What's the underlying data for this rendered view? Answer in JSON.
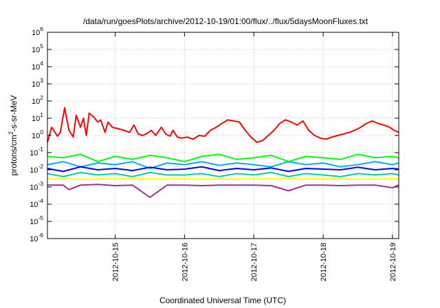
{
  "chart_data": {
    "type": "line",
    "title": "/data/run/goesPlots/archive/2012-10-19/01:00/flux/../flux/5daysMoonFluxes.txt",
    "xlabel": "Coordinated Universal Time (UTC)",
    "ylabel_base": "protons/cm",
    "ylabel_sup": "2",
    "ylabel_tail": "-s-sr-MeV",
    "y_scale": "log",
    "ylim": [
      1e-06,
      1000000.0
    ],
    "xlim": [
      "2012-10-14T00:33",
      "2012-10-19T02:10"
    ],
    "grid": true,
    "y_ticks": [
      {
        "value": 1e-06,
        "base": "10",
        "exp": "-6"
      },
      {
        "value": 1e-05,
        "base": "10",
        "exp": "-5"
      },
      {
        "value": 0.0001,
        "base": "10",
        "exp": "-4"
      },
      {
        "value": 0.001,
        "base": "10",
        "exp": "-3"
      },
      {
        "value": 0.01,
        "base": "10",
        "exp": "-2"
      },
      {
        "value": 0.1,
        "base": "10",
        "exp": "-1"
      },
      {
        "value": 1,
        "base": "10",
        "exp": "0"
      },
      {
        "value": 10,
        "base": "10",
        "exp": "1"
      },
      {
        "value": 100,
        "base": "10",
        "exp": "2"
      },
      {
        "value": 1000,
        "base": "10",
        "exp": "3"
      },
      {
        "value": 10000,
        "base": "10",
        "exp": "4"
      },
      {
        "value": 100000,
        "base": "10",
        "exp": "5"
      },
      {
        "value": 1000000,
        "base": "10",
        "exp": "6"
      }
    ],
    "x_ticks": [
      {
        "value": "2012-10-15T00:00",
        "label": "2012-10-15"
      },
      {
        "value": "2012-10-16T00:00",
        "label": "2012-10-16"
      },
      {
        "value": "2012-10-17T00:00",
        "label": "2012-10-17"
      },
      {
        "value": "2012-10-18T00:00",
        "label": "2012-10-18"
      },
      {
        "value": "2012-10-19T00:00",
        "label": "2012-10-19"
      }
    ],
    "series": [
      {
        "color": "#ff0000",
        "x": [
          "2012-10-14T00:33",
          "2012-10-14T02:00",
          "2012-10-14T04:00",
          "2012-10-14T05:00",
          "2012-10-14T06:30",
          "2012-10-14T08:00",
          "2012-10-14T09:30",
          "2012-10-14T10:30",
          "2012-10-14T12:00",
          "2012-10-14T13:00",
          "2012-10-14T14:00",
          "2012-10-14T15:00",
          "2012-10-14T16:30",
          "2012-10-14T18:00",
          "2012-10-14T19:00",
          "2012-10-14T20:30",
          "2012-10-14T21:30",
          "2012-10-14T23:00",
          "2012-10-15T01:00",
          "2012-10-15T03:00",
          "2012-10-15T05:00",
          "2012-10-15T06:30",
          "2012-10-15T08:00",
          "2012-10-15T09:30",
          "2012-10-15T11:00",
          "2012-10-15T12:30",
          "2012-10-15T14:00",
          "2012-10-15T16:00",
          "2012-10-15T17:30",
          "2012-10-15T19:00",
          "2012-10-15T20:00",
          "2012-10-15T21:30",
          "2012-10-15T23:00",
          "2012-10-16T01:00",
          "2012-10-16T03:00",
          "2012-10-16T05:00",
          "2012-10-16T07:00",
          "2012-10-16T09:00",
          "2012-10-16T11:00",
          "2012-10-16T13:00",
          "2012-10-16T15:00",
          "2012-10-16T17:00",
          "2012-10-16T19:00",
          "2012-10-16T21:00",
          "2012-10-16T23:00",
          "2012-10-17T01:00",
          "2012-10-17T03:00",
          "2012-10-17T05:00",
          "2012-10-17T07:00",
          "2012-10-17T09:00",
          "2012-10-17T11:00",
          "2012-10-17T13:00",
          "2012-10-17T15:00",
          "2012-10-17T17:00",
          "2012-10-17T19:00",
          "2012-10-17T21:00",
          "2012-10-17T23:00",
          "2012-10-18T01:00",
          "2012-10-18T03:00",
          "2012-10-18T05:00",
          "2012-10-18T07:00",
          "2012-10-18T09:00",
          "2012-10-18T11:00",
          "2012-10-18T13:00",
          "2012-10-18T15:00",
          "2012-10-18T17:00",
          "2012-10-18T19:00",
          "2012-10-18T21:00",
          "2012-10-18T23:00",
          "2012-10-19T00:30",
          "2012-10-19T02:10"
        ],
        "values": [
          0.4,
          3,
          0.9,
          1.5,
          40,
          2,
          0.8,
          15,
          3,
          10,
          1,
          20,
          12,
          6,
          8,
          1.5,
          6,
          3,
          2.5,
          2,
          1.5,
          4,
          1.2,
          1,
          1.3,
          2,
          1,
          3,
          1.2,
          0.9,
          2,
          0.8,
          0.7,
          0.8,
          0.6,
          1,
          0.9,
          2,
          3,
          5,
          8,
          7,
          6,
          2,
          0.8,
          0.4,
          0.5,
          1,
          2,
          5,
          8,
          6,
          4,
          7,
          2,
          1,
          0.7,
          0.6,
          0.8,
          1,
          1.2,
          1.5,
          2,
          3,
          5,
          7,
          5,
          4,
          3,
          2,
          1.5
        ]
      },
      {
        "color": "#00ff00",
        "x": [
          "2012-10-14T00:33",
          "2012-10-14T06:00",
          "2012-10-14T12:00",
          "2012-10-14T18:00",
          "2012-10-15T00:00",
          "2012-10-15T06:00",
          "2012-10-15T12:00",
          "2012-10-15T18:00",
          "2012-10-16T00:00",
          "2012-10-16T06:00",
          "2012-10-16T12:00",
          "2012-10-16T18:00",
          "2012-10-17T00:00",
          "2012-10-17T06:00",
          "2012-10-17T12:00",
          "2012-10-17T18:00",
          "2012-10-18T00:00",
          "2012-10-18T06:00",
          "2012-10-18T12:00",
          "2012-10-18T18:00",
          "2012-10-19T00:00",
          "2012-10-19T02:10"
        ],
        "values": [
          0.06,
          0.05,
          0.08,
          0.03,
          0.06,
          0.04,
          0.07,
          0.05,
          0.03,
          0.06,
          0.08,
          0.04,
          0.05,
          0.07,
          0.03,
          0.06,
          0.05,
          0.04,
          0.08,
          0.05,
          0.06,
          0.05
        ]
      },
      {
        "color": "#00aaff",
        "x": [
          "2012-10-14T00:33",
          "2012-10-14T06:00",
          "2012-10-14T12:00",
          "2012-10-14T18:00",
          "2012-10-15T00:00",
          "2012-10-15T06:00",
          "2012-10-15T12:00",
          "2012-10-15T18:00",
          "2012-10-16T00:00",
          "2012-10-16T06:00",
          "2012-10-16T12:00",
          "2012-10-16T18:00",
          "2012-10-17T00:00",
          "2012-10-17T06:00",
          "2012-10-17T12:00",
          "2012-10-17T18:00",
          "2012-10-18T00:00",
          "2012-10-18T06:00",
          "2012-10-18T12:00",
          "2012-10-18T18:00",
          "2012-10-19T00:00",
          "2012-10-19T02:10"
        ],
        "values": [
          0.02,
          0.03,
          0.015,
          0.025,
          0.02,
          0.03,
          0.012,
          0.025,
          0.02,
          0.03,
          0.018,
          0.025,
          0.02,
          0.015,
          0.03,
          0.02,
          0.025,
          0.015,
          0.02,
          0.03,
          0.02,
          0.025
        ]
      },
      {
        "color": "#0000ff",
        "x": [
          "2012-10-14T00:33",
          "2012-10-14T06:00",
          "2012-10-14T12:00",
          "2012-10-14T18:00",
          "2012-10-15T00:00",
          "2012-10-15T06:00",
          "2012-10-15T12:00",
          "2012-10-15T18:00",
          "2012-10-16T00:00",
          "2012-10-16T06:00",
          "2012-10-16T12:00",
          "2012-10-16T18:00",
          "2012-10-17T00:00",
          "2012-10-17T06:00",
          "2012-10-17T12:00",
          "2012-10-17T18:00",
          "2012-10-18T00:00",
          "2012-10-18T06:00",
          "2012-10-18T12:00",
          "2012-10-18T18:00",
          "2012-10-19T00:00",
          "2012-10-19T02:10"
        ],
        "values": [
          0.012,
          0.008,
          0.015,
          0.01,
          0.012,
          0.009,
          0.014,
          0.01,
          0.011,
          0.015,
          0.009,
          0.012,
          0.01,
          0.013,
          0.008,
          0.012,
          0.011,
          0.01,
          0.014,
          0.01,
          0.012,
          0.011
        ]
      },
      {
        "color": "#00ccaa",
        "x": [
          "2012-10-14T00:33",
          "2012-10-14T06:00",
          "2012-10-14T12:00",
          "2012-10-14T18:00",
          "2012-10-15T00:00",
          "2012-10-15T06:00",
          "2012-10-15T12:00",
          "2012-10-15T18:00",
          "2012-10-16T00:00",
          "2012-10-16T06:00",
          "2012-10-16T12:00",
          "2012-10-16T18:00",
          "2012-10-17T00:00",
          "2012-10-17T06:00",
          "2012-10-17T12:00",
          "2012-10-17T18:00",
          "2012-10-18T00:00",
          "2012-10-18T06:00",
          "2012-10-18T12:00",
          "2012-10-18T18:00",
          "2012-10-19T00:00",
          "2012-10-19T02:10"
        ],
        "values": [
          0.006,
          0.004,
          0.007,
          0.005,
          0.006,
          0.004,
          0.007,
          0.005,
          0.005,
          0.006,
          0.004,
          0.006,
          0.005,
          0.007,
          0.004,
          0.006,
          0.005,
          0.004,
          0.006,
          0.005,
          0.006,
          0.005
        ]
      },
      {
        "color": "#ffff00",
        "x": [
          "2012-10-14T00:33",
          "2012-10-14T12:00",
          "2012-10-15T00:00",
          "2012-10-15T12:00",
          "2012-10-16T00:00",
          "2012-10-16T12:00",
          "2012-10-17T00:00",
          "2012-10-17T12:00",
          "2012-10-18T00:00",
          "2012-10-18T12:00",
          "2012-10-19T00:00",
          "2012-10-19T02:10"
        ],
        "values": [
          0.003,
          0.0028,
          0.003,
          0.0029,
          0.003,
          0.0028,
          0.003,
          0.0029,
          0.003,
          0.0028,
          0.003,
          0.003
        ]
      },
      {
        "color": "#993399",
        "x": [
          "2012-10-14T00:33",
          "2012-10-14T06:00",
          "2012-10-14T08:00",
          "2012-10-14T12:00",
          "2012-10-14T18:00",
          "2012-10-15T00:00",
          "2012-10-15T06:00",
          "2012-10-15T12:00",
          "2012-10-15T18:00",
          "2012-10-16T00:00",
          "2012-10-16T06:00",
          "2012-10-16T12:00",
          "2012-10-16T18:00",
          "2012-10-17T00:00",
          "2012-10-17T06:00",
          "2012-10-17T12:00",
          "2012-10-17T18:00",
          "2012-10-18T00:00",
          "2012-10-18T06:00",
          "2012-10-18T12:00",
          "2012-10-18T18:00",
          "2012-10-19T00:00",
          "2012-10-19T02:10"
        ],
        "values": [
          0.0013,
          0.0013,
          0.0007,
          0.0013,
          0.0014,
          0.0012,
          0.0013,
          0.00025,
          0.0013,
          0.0013,
          0.0012,
          0.0013,
          0.0013,
          0.0013,
          0.0012,
          0.0006,
          0.0013,
          0.0013,
          0.0012,
          0.0013,
          0.0013,
          0.0009,
          0.0013
        ]
      }
    ]
  }
}
